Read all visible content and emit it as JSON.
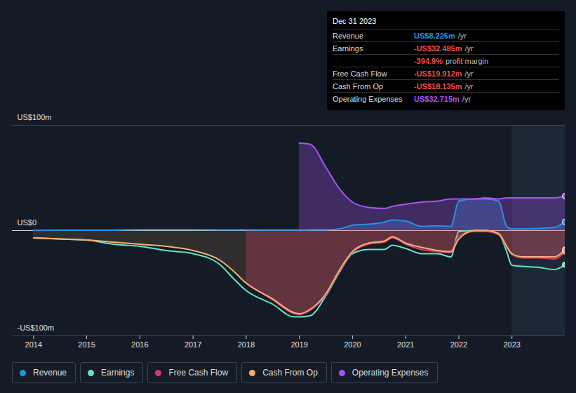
{
  "chart_data": {
    "type": "line",
    "x": [
      2014,
      2014.5,
      2015,
      2015.5,
      2016,
      2016.5,
      2017,
      2017.5,
      2017.75,
      2018,
      2018.5,
      2018.9,
      2019.0,
      2019.2,
      2019.5,
      2019.75,
      2020,
      2020.3,
      2020.6,
      2020.75,
      2021,
      2021.3,
      2021.6,
      2021.85,
      2022.0,
      2022.3,
      2022.5,
      2022.75,
      2022.9,
      2023,
      2023.2,
      2023.5,
      2023.8,
      2024
    ],
    "xlim": [
      2013.6,
      2024.0
    ],
    "xticks": [
      2014,
      2015,
      2016,
      2017,
      2018,
      2019,
      2020,
      2021,
      2022,
      2023
    ],
    "ylim": [
      -100,
      100
    ],
    "yticks": [
      {
        "value": 100,
        "label": "US$100m"
      },
      {
        "value": 0,
        "label": "US$0"
      },
      {
        "value": -100,
        "label": "-US$100m"
      }
    ],
    "grid": true,
    "series": [
      {
        "name": "Revenue",
        "color": "#2394e0",
        "type": "area",
        "values": [
          0.2,
          0.3,
          0.3,
          0.4,
          0.8,
          0.9,
          0.8,
          0.6,
          0.6,
          0.6,
          0.5,
          0.5,
          0.5,
          0.6,
          0.7,
          1.5,
          5,
          6,
          8,
          10,
          9,
          4,
          4.5,
          4,
          28,
          30,
          30,
          28,
          4,
          1.5,
          1.5,
          2,
          3,
          8.226
        ]
      },
      {
        "name": "Earnings",
        "color": "#62e4c7",
        "type": "line",
        "values": [
          -7,
          -8,
          -9,
          -13,
          -15,
          -19,
          -22,
          -32,
          -45,
          -57,
          -70,
          -82,
          -82,
          -81,
          -62,
          -40,
          -22,
          -18,
          -18,
          -14,
          -17,
          -22,
          -22,
          -25,
          -1,
          0,
          0,
          -3,
          -20,
          -33,
          -34,
          -35,
          -37,
          -32.485
        ]
      },
      {
        "name": "Free Cash Flow",
        "color": "#d6386c",
        "type": "area",
        "values": [
          null,
          null,
          null,
          null,
          null,
          null,
          null,
          null,
          null,
          -50,
          -66,
          -79,
          -80,
          -76,
          -61,
          -39,
          -21,
          -13,
          -11,
          -7,
          -13,
          -18,
          -20,
          -21,
          -5,
          -1,
          -1,
          -4,
          -16,
          -23,
          -26,
          -26,
          -27,
          -19.912
        ]
      },
      {
        "name": "Cash From Op",
        "color": "#f3b26d",
        "type": "area",
        "values": [
          -7,
          -8,
          -9,
          -11,
          -13,
          -15,
          -19,
          -28,
          -38,
          -50,
          -65,
          -78,
          -79,
          -75,
          -60,
          -38,
          -20,
          -12,
          -10,
          -6,
          -12,
          -16,
          -19,
          -20,
          -8,
          0,
          0,
          -3,
          -15,
          -22,
          -25,
          -25,
          -25,
          -18.135
        ]
      },
      {
        "name": "Operating Expenses",
        "color": "#a954f2",
        "type": "area",
        "values": [
          null,
          null,
          null,
          null,
          null,
          null,
          null,
          null,
          null,
          null,
          null,
          null,
          83,
          82,
          60,
          40,
          27,
          22,
          21,
          23,
          25,
          27,
          28,
          30,
          30,
          30,
          31,
          30,
          31,
          31,
          31,
          31,
          31,
          32.715
        ]
      }
    ],
    "legend": "bottom",
    "tooltip": {
      "title": "Dec 31 2023",
      "rows": [
        {
          "label": "Revenue",
          "value": "US$8.226m",
          "unit": "/yr"
        },
        {
          "label": "Earnings",
          "value": "-US$32.485m",
          "unit": "/yr"
        },
        {
          "value": "-394.9%",
          "unit": "profit margin"
        },
        {
          "label": "Free Cash Flow",
          "value": "-US$19.912m",
          "unit": "/yr"
        },
        {
          "label": "Cash From Op",
          "value": "-US$18.135m",
          "unit": "/yr"
        },
        {
          "label": "Operating Expenses",
          "value": "US$32.715m",
          "unit": "/yr"
        }
      ]
    }
  }
}
